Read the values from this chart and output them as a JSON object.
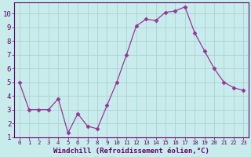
{
  "x": [
    0,
    1,
    2,
    3,
    4,
    5,
    6,
    7,
    8,
    9,
    10,
    11,
    12,
    13,
    14,
    15,
    16,
    17,
    18,
    19,
    20,
    21,
    22,
    23
  ],
  "y": [
    5.0,
    3.0,
    3.0,
    3.0,
    3.8,
    1.3,
    2.7,
    1.8,
    1.6,
    3.3,
    5.0,
    7.0,
    9.1,
    9.6,
    9.5,
    10.1,
    10.2,
    10.5,
    8.6,
    7.3,
    6.0,
    5.0,
    4.6,
    4.4
  ],
  "xlabel": "Windchill (Refroidissement éolien,°C)",
  "ylim": [
    1,
    10.8
  ],
  "xlim": [
    -0.5,
    23.5
  ],
  "yticks": [
    1,
    2,
    3,
    4,
    5,
    6,
    7,
    8,
    9,
    10
  ],
  "xticks": [
    0,
    1,
    2,
    3,
    4,
    5,
    6,
    7,
    8,
    9,
    10,
    11,
    12,
    13,
    14,
    15,
    16,
    17,
    18,
    19,
    20,
    21,
    22,
    23
  ],
  "line_color": "#993399",
  "marker": "D",
  "marker_size": 2.5,
  "bg_color": "#c8ecec",
  "grid_color": "#aad4d4",
  "label_color": "#660066",
  "tick_color": "#660066",
  "spine_color": "#660066",
  "xlabel_fontsize": 6.5,
  "tick_fontsize_x": 5.2,
  "tick_fontsize_y": 6.5
}
